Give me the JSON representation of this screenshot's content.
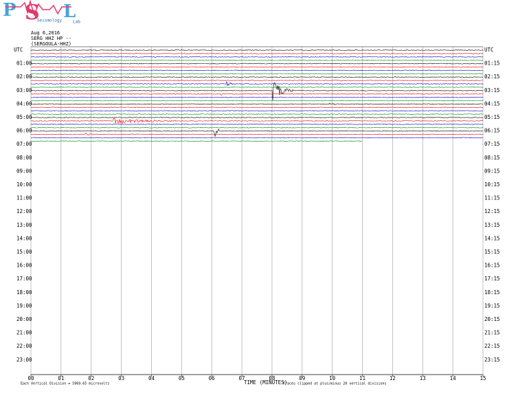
{
  "header": {
    "logo": {
      "letters": [
        "P",
        "S",
        "L"
      ],
      "subtitle": "Seismology",
      "tail": "Lab"
    },
    "date": "Aug 6,2016",
    "station": "SERG HHZ HP --",
    "station_name": "(SERGOULA-HHZ)"
  },
  "left_labels": [
    "UTC",
    "01:00",
    "02:00",
    "03:00",
    "04:00",
    "05:00",
    "06:00",
    "07:00",
    "08:00",
    "09:00",
    "10:00",
    "11:00",
    "12:00",
    "13:00",
    "14:00",
    "15:00",
    "16:00",
    "17:00",
    "18:00",
    "19:00",
    "20:00",
    "21:00",
    "22:00",
    "23:00"
  ],
  "right_labels": [
    "UTC",
    "01:15",
    "02:15",
    "03:15",
    "04:15",
    "05:15",
    "06:15",
    "07:15",
    "08:15",
    "09:15",
    "10:15",
    "11:15",
    "12:15",
    "13:15",
    "14:15",
    "15:15",
    "16:15",
    "17:15",
    "18:15",
    "19:15",
    "20:15",
    "21:15",
    "22:15",
    "23:15"
  ],
  "x_labels": [
    "00",
    "01",
    "02",
    "03",
    "04",
    "05",
    "06",
    "07",
    "08",
    "09",
    "10",
    "11",
    "12",
    "13",
    "14",
    "15"
  ],
  "x_title": "TIME (MINUTES)",
  "footer": {
    "scale": "Each Vertical Division = 5969.65 microvolts",
    "clip": "Traces clipped at plus/minus 20 vertical divisions"
  }
}
